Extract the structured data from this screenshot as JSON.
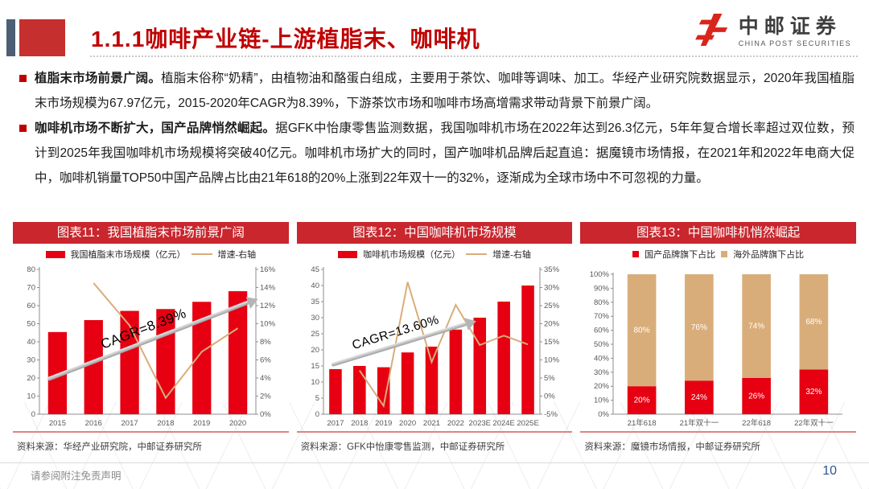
{
  "colors": {
    "accent_red": "#c00000",
    "panel_red": "#c9262d",
    "bar_red": "#e60012",
    "tan": "#d9ad7a",
    "slate": "#4c5f75",
    "page_blue": "#2e5395"
  },
  "page": {
    "header": {
      "title": "1.1.1咖啡产业链-上游植脂末、咖啡机",
      "logo": {
        "name": "中邮证券",
        "subtitle": "CHINA POST SECURITIES"
      }
    },
    "bullets": [
      {
        "lead": "植脂末市场前景广阔。",
        "text": "植脂末俗称“奶精”，由植物油和酪蛋白组成，主要用于茶饮、咖啡等调味、加工。华经产业研究院数据显示，2020年我国植脂末市场规模为67.97亿元，2015-2020年CAGR为8.39%，下游茶饮市场和咖啡市场高增需求带动背景下前景广阔。"
      },
      {
        "lead": "咖啡机市场不断扩大，国产品牌悄然崛起。",
        "text": "据GFK中怡康零售监测数据，我国咖啡机市场在2022年达到26.3亿元，5年年复合增长率超过双位数，预计到2025年我国咖啡机市场规模将突破40亿元。咖啡机市场扩大的同时，国产咖啡机品牌后起直追：据魔镜市场情报，在2021年和2022年电商大促中，咖啡机销量TOP50中国产品牌占比由21年618的20%上涨到22年双十一的32%，逐渐成为全球市场中不可忽视的力量。"
      }
    ],
    "footer": {
      "disclaimer": "请参阅附注免责声明",
      "page_number": "10"
    }
  },
  "chart_data": [
    {
      "type": "bar",
      "panel_title": "图表11：我国植脂末市场前景广阔",
      "categories": [
        "2015",
        "2016",
        "2017",
        "2018",
        "2019",
        "2020"
      ],
      "series": [
        {
          "name": "我国植脂末市场规模（亿元）",
          "type": "bar",
          "axis": "left",
          "values": [
            45.4,
            52.0,
            57.1,
            58.1,
            62.1,
            67.97
          ]
        },
        {
          "name": "增速-右轴",
          "type": "line",
          "axis": "right",
          "values": [
            null,
            14.5,
            9.8,
            1.8,
            6.9,
            9.5
          ]
        }
      ],
      "left_axis": {
        "min": 0,
        "max": 80,
        "step": 10,
        "suffix": ""
      },
      "right_axis": {
        "min": 0,
        "max": 16,
        "step": 2,
        "suffix": "%"
      },
      "annotation": "CAGR=8.39%",
      "source": "资料来源：华经产业研究院，中邮证券研究所"
    },
    {
      "type": "bar",
      "panel_title": "图表12：中国咖啡机市场规模",
      "categories": [
        "2017",
        "2018",
        "2019",
        "2020",
        "2021",
        "2022",
        "2023E",
        "2024E",
        "2025E"
      ],
      "series": [
        {
          "name": "咖啡机市场规模（亿元）",
          "type": "bar",
          "axis": "left",
          "values": [
            14.0,
            15.0,
            14.6,
            19.2,
            21.0,
            26.3,
            30.0,
            35.0,
            40.0
          ]
        },
        {
          "name": "增速-右轴",
          "type": "line",
          "axis": "right",
          "values": [
            null,
            7.1,
            -2.7,
            31.5,
            9.4,
            25.2,
            14.1,
            16.7,
            14.3
          ]
        }
      ],
      "left_axis": {
        "min": 0,
        "max": 45,
        "step": 5,
        "suffix": ""
      },
      "right_axis": {
        "min": -5,
        "max": 35,
        "step": 5,
        "suffix": "%"
      },
      "annotation": "CAGR=13.60%",
      "source": "资料来源：GFK中怡康零售监测，中邮证券研究所"
    },
    {
      "type": "bar",
      "panel_title": "图表13：中国咖啡机悄然崛起",
      "categories": [
        "21年618",
        "21年双十一",
        "22年618",
        "22年双十一"
      ],
      "series": [
        {
          "name": "国产品牌旗下占比",
          "color_key": "red",
          "values": [
            20,
            24,
            26,
            32
          ]
        },
        {
          "name": "海外品牌旗下占比",
          "color_key": "tan",
          "values": [
            80,
            76,
            74,
            68
          ]
        }
      ],
      "y_axis": {
        "min": 0,
        "max": 100,
        "step": 10,
        "suffix": "%"
      },
      "source": "资料来源：魔镜市场情报，中邮证券研究所"
    }
  ]
}
